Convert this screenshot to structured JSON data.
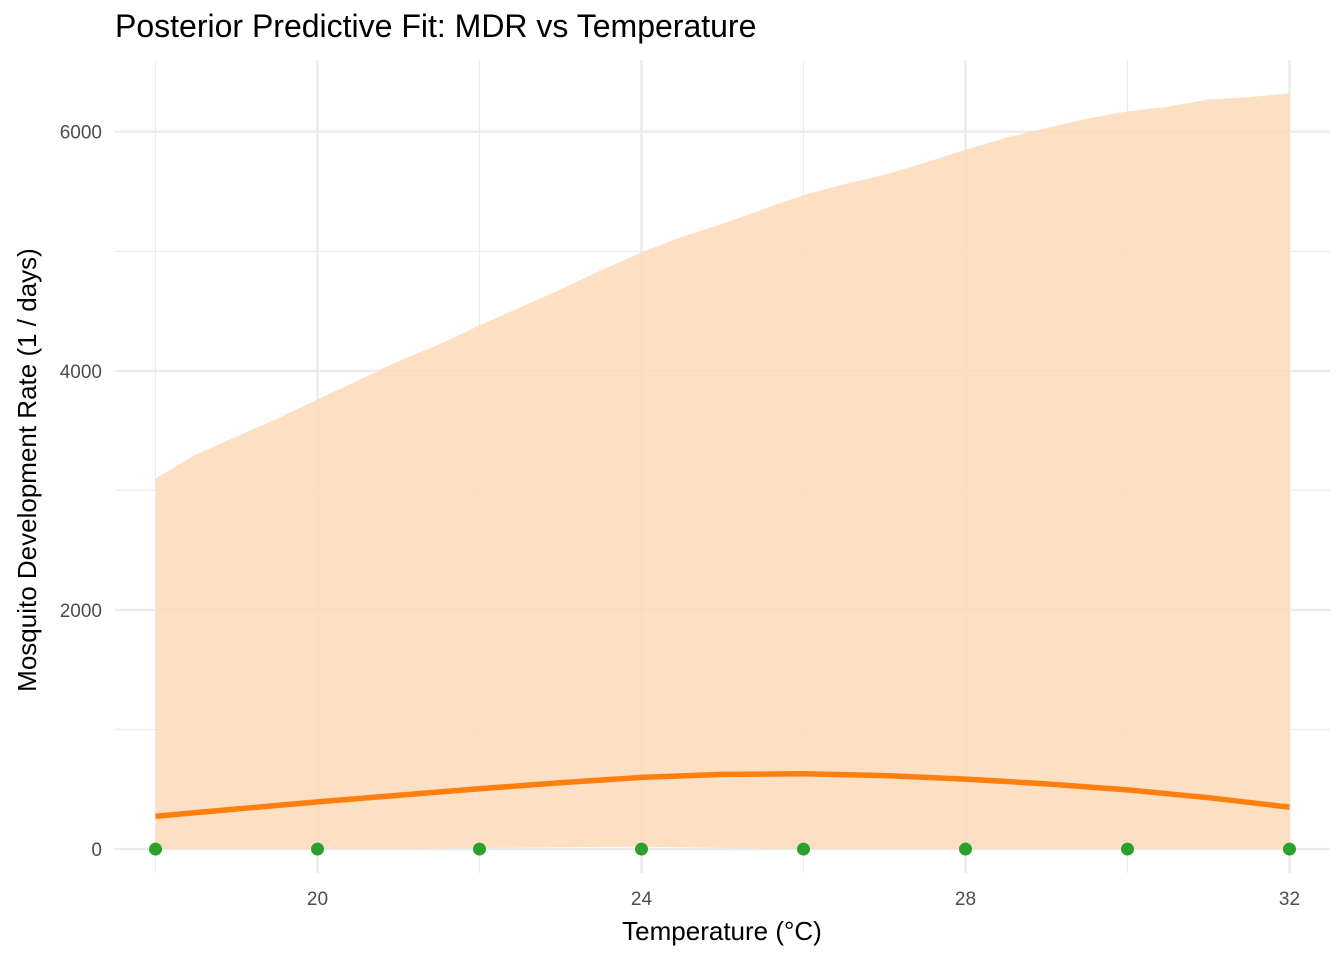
{
  "chart_data": {
    "type": "line",
    "title": "Posterior Predictive Fit: MDR vs Temperature",
    "xlabel": "Temperature (°C)",
    "ylabel": "Mosquito Development Rate (1 / days)",
    "xlim": [
      17.5,
      32.5
    ],
    "ylim": [
      -200,
      6600
    ],
    "x_ticks": [
      20,
      24,
      28,
      32
    ],
    "y_ticks": [
      0,
      2000,
      4000,
      6000
    ],
    "grid": true,
    "colors": {
      "band": "#fdd9b9",
      "line": "#ff7f0e",
      "points": "#2ca02c",
      "grid": "#ebebeb"
    },
    "band": {
      "x": [
        18,
        18.5,
        19,
        19.5,
        20,
        20.5,
        21,
        21.5,
        22,
        22.5,
        23,
        23.5,
        24,
        24.5,
        25,
        25.5,
        26,
        26.5,
        27,
        27.5,
        28,
        28.5,
        29,
        29.5,
        30,
        30.5,
        31,
        31.5,
        32
      ],
      "upper": [
        3100,
        3300,
        3450,
        3600,
        3760,
        3920,
        4080,
        4220,
        4380,
        4530,
        4680,
        4840,
        4990,
        5120,
        5230,
        5350,
        5470,
        5560,
        5640,
        5740,
        5850,
        5950,
        6030,
        6110,
        6170,
        6210,
        6270,
        6290,
        6320
      ],
      "lower": [
        0,
        0,
        0,
        0,
        0,
        0,
        0,
        5,
        10,
        12,
        15,
        18,
        20,
        15,
        10,
        2,
        0,
        0,
        0,
        0,
        0,
        0,
        0,
        0,
        0,
        0,
        0,
        0,
        0
      ]
    },
    "series": [
      {
        "type": "line",
        "x": [
          18,
          19,
          20,
          21,
          22,
          23,
          24,
          25,
          26,
          27,
          28,
          29,
          30,
          31,
          32
        ],
        "y": [
          275,
          335,
          395,
          450,
          505,
          555,
          600,
          625,
          630,
          615,
          585,
          545,
          495,
          430,
          350
        ]
      },
      {
        "type": "scatter",
        "x": [
          18,
          20,
          22,
          24,
          26,
          28,
          30,
          32
        ],
        "y": [
          0,
          0,
          0,
          0,
          0,
          0,
          0,
          0
        ]
      }
    ]
  }
}
